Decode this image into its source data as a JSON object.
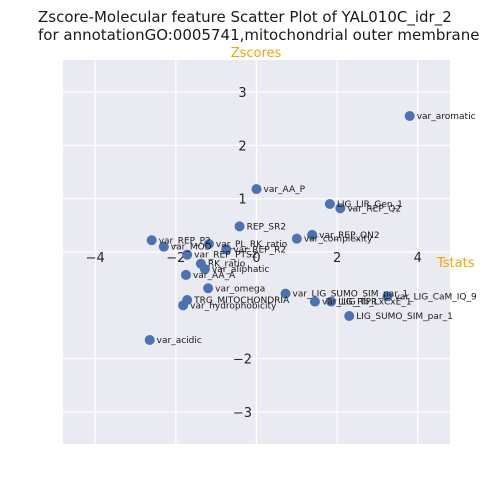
{
  "chart_data": {
    "type": "scatter",
    "title_lines": [
      "Zscore-Molecular feature Scatter Plot of YAL010C_idr_2",
      "for annotationGO:0005741,mitochondrial outer membrane"
    ],
    "xlabel": "Tstats",
    "ylabel": "Zscores",
    "xlim": [
      -4.8,
      4.8
    ],
    "ylim": [
      -3.6,
      3.6
    ],
    "xticks": [
      -4,
      -2,
      0,
      2,
      4
    ],
    "yticks": [
      -3,
      -2,
      1,
      2,
      3
    ],
    "grid": true,
    "background": "#eaeaf2",
    "point_color": "#4c72b0",
    "axis_title_color": "#f0a30a",
    "points": [
      {
        "label": "var_aromatic",
        "x": 3.8,
        "y": 2.55
      },
      {
        "label": "var_AA_P",
        "x": 0.0,
        "y": 1.18
      },
      {
        "label": "LIG_LIR_Gen_1",
        "x": 1.82,
        "y": 0.9
      },
      {
        "label": "var_REP_Q2",
        "x": 2.08,
        "y": 0.82
      },
      {
        "label": "REP_SR2",
        "x": -0.42,
        "y": 0.48
      },
      {
        "label": "var_REP_QN2",
        "x": 1.38,
        "y": 0.32
      },
      {
        "label": "var_complexity",
        "x": 1.0,
        "y": 0.25
      },
      {
        "label": "var_REP_P2",
        "x": -2.6,
        "y": 0.22
      },
      {
        "label": "var_MOD",
        "x": -2.3,
        "y": 0.1
      },
      {
        "label": "var_PL_RK_ratio",
        "x": -1.18,
        "y": 0.15
      },
      {
        "label": "var_REP_R2",
        "x": -0.75,
        "y": 0.05
      },
      {
        "label": "var_REP_PTS2",
        "x": -1.72,
        "y": -0.05
      },
      {
        "label": "RK_ratio",
        "x": -1.38,
        "y": -0.22
      },
      {
        "label": "var_aliphatic",
        "x": -1.28,
        "y": -0.32
      },
      {
        "label": "var_AA_A",
        "x": -1.75,
        "y": -0.43
      },
      {
        "label": "var_omega",
        "x": -1.2,
        "y": -0.68
      },
      {
        "label": "var_LIG_SUMO_SIM_par_1",
        "x": 0.72,
        "y": -0.78
      },
      {
        "label": "TRG_MITOCHONDRIA",
        "x": -1.72,
        "y": -0.9
      },
      {
        "label": "var_hydrophobicity",
        "x": -1.82,
        "y": -1.0
      },
      {
        "label": "var_LIG_CaM_IQ_9",
        "x": 3.25,
        "y": -0.83
      },
      {
        "label": "var_LIG_TPR",
        "x": 1.45,
        "y": -0.93
      },
      {
        "label": "LIG_Rb_LxCxE_1",
        "x": 1.85,
        "y": -0.93
      },
      {
        "label": "LIG_SUMO_SIM_par_1",
        "x": 2.3,
        "y": -1.2
      },
      {
        "label": "var_acidic",
        "x": -2.65,
        "y": -1.65
      }
    ]
  }
}
